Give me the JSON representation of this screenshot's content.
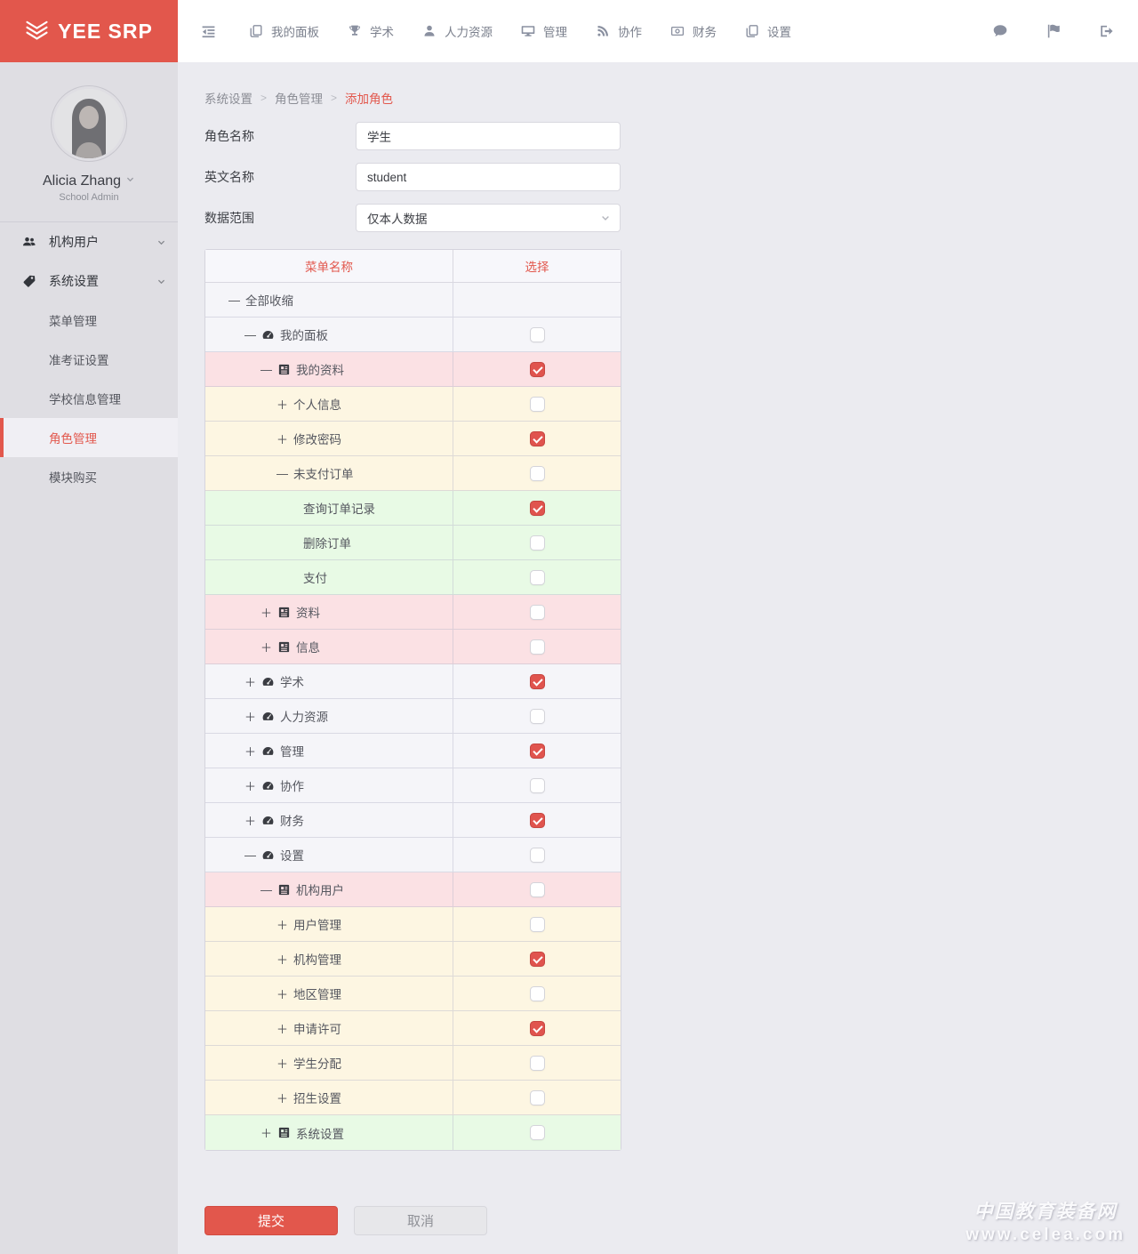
{
  "app": {
    "logo_text": "YEE SRP"
  },
  "topnav": {
    "items": [
      {
        "name": "dashboard",
        "icon": "copy",
        "label": "我的面板"
      },
      {
        "name": "academics",
        "icon": "trophy",
        "label": "学术"
      },
      {
        "name": "hr",
        "icon": "user",
        "label": "人力资源"
      },
      {
        "name": "management",
        "icon": "monitor",
        "label": "管理"
      },
      {
        "name": "collaboration",
        "icon": "rss",
        "label": "协作"
      },
      {
        "name": "finance",
        "icon": "cash",
        "label": "财务"
      },
      {
        "name": "settings",
        "icon": "copy",
        "label": "设置"
      }
    ]
  },
  "user": {
    "name": "Alicia Zhang",
    "role": "School Admin"
  },
  "sidebar": {
    "items": [
      {
        "name": "org-users",
        "icon": "users",
        "label": "机构用户",
        "expanded": false
      },
      {
        "name": "system-settings",
        "icon": "tag",
        "label": "系统设置",
        "expanded": true,
        "children": [
          {
            "name": "menu-management",
            "label": "菜单管理",
            "active": false
          },
          {
            "name": "admission-ticket-settings",
            "label": "准考证设置",
            "active": false
          },
          {
            "name": "school-info-management",
            "label": "学校信息管理",
            "active": false
          },
          {
            "name": "role-management",
            "label": "角色管理",
            "active": true
          },
          {
            "name": "module-purchase",
            "label": "模块购买",
            "active": false
          }
        ]
      }
    ]
  },
  "breadcrumb": {
    "sep": ">",
    "items": [
      "系统设置",
      "角色管理",
      "添加角色"
    ]
  },
  "form": {
    "role_name": {
      "label": "角色名称",
      "value": "学生"
    },
    "english_name": {
      "label": "英文名称",
      "value": "student"
    },
    "data_scope": {
      "label": "数据范围",
      "value": "仅本人数据"
    }
  },
  "table": {
    "headers": [
      "菜单名称",
      "选择"
    ],
    "rows": [
      {
        "label": "全部收缩",
        "level": 0,
        "prefix": "—",
        "icon": null,
        "checkbox": false,
        "checked": false,
        "bg": "lavender"
      },
      {
        "label": "我的面板",
        "level": 1,
        "prefix": "—",
        "icon": "dashboard",
        "checkbox": true,
        "checked": false,
        "bg": "lavender"
      },
      {
        "label": "我的资料",
        "level": 2,
        "prefix": "—",
        "icon": "news",
        "checkbox": true,
        "checked": true,
        "bg": "pink"
      },
      {
        "label": "个人信息",
        "level": 3,
        "prefix": "＋",
        "icon": null,
        "checkbox": true,
        "checked": false,
        "bg": "yellow"
      },
      {
        "label": "修改密码",
        "level": 3,
        "prefix": "＋",
        "icon": null,
        "checkbox": true,
        "checked": true,
        "bg": "yellow"
      },
      {
        "label": "未支付订单",
        "level": 3,
        "prefix": "—",
        "icon": null,
        "checkbox": true,
        "checked": false,
        "bg": "yellow"
      },
      {
        "label": "查询订单记录",
        "level": 4,
        "prefix": null,
        "icon": null,
        "checkbox": true,
        "checked": true,
        "bg": "green"
      },
      {
        "label": "删除订单",
        "level": 4,
        "prefix": null,
        "icon": null,
        "checkbox": true,
        "checked": false,
        "bg": "green"
      },
      {
        "label": "支付",
        "level": 4,
        "prefix": null,
        "icon": null,
        "checkbox": true,
        "checked": false,
        "bg": "green"
      },
      {
        "label": "资料",
        "level": 2,
        "prefix": "＋",
        "icon": "news",
        "checkbox": true,
        "checked": false,
        "bg": "pink"
      },
      {
        "label": "信息",
        "level": 2,
        "prefix": "＋",
        "icon": "news",
        "checkbox": true,
        "checked": false,
        "bg": "pink"
      },
      {
        "label": "学术",
        "level": 1,
        "prefix": "＋",
        "icon": "dashboard",
        "checkbox": true,
        "checked": true,
        "bg": "lavender"
      },
      {
        "label": "人力资源",
        "level": 1,
        "prefix": "＋",
        "icon": "dashboard",
        "checkbox": true,
        "checked": false,
        "bg": "lavender"
      },
      {
        "label": "管理",
        "level": 1,
        "prefix": "＋",
        "icon": "dashboard",
        "checkbox": true,
        "checked": true,
        "bg": "lavender"
      },
      {
        "label": "协作",
        "level": 1,
        "prefix": "＋",
        "icon": "dashboard",
        "checkbox": true,
        "checked": false,
        "bg": "lavender"
      },
      {
        "label": "财务",
        "level": 1,
        "prefix": "＋",
        "icon": "dashboard",
        "checkbox": true,
        "checked": true,
        "bg": "lavender"
      },
      {
        "label": "设置",
        "level": 1,
        "prefix": "—",
        "icon": "dashboard",
        "checkbox": true,
        "checked": false,
        "bg": "lavender"
      },
      {
        "label": "机构用户",
        "level": 2,
        "prefix": "—",
        "icon": "news",
        "checkbox": true,
        "checked": false,
        "bg": "pink"
      },
      {
        "label": "用户管理",
        "level": 3,
        "prefix": "＋",
        "icon": null,
        "checkbox": true,
        "checked": false,
        "bg": "yellow"
      },
      {
        "label": "机构管理",
        "level": 3,
        "prefix": "＋",
        "icon": null,
        "checkbox": true,
        "checked": true,
        "bg": "yellow"
      },
      {
        "label": "地区管理",
        "level": 3,
        "prefix": "＋",
        "icon": null,
        "checkbox": true,
        "checked": false,
        "bg": "yellow"
      },
      {
        "label": "申请许可",
        "level": 3,
        "prefix": "＋",
        "icon": null,
        "checkbox": true,
        "checked": true,
        "bg": "yellow"
      },
      {
        "label": "学生分配",
        "level": 3,
        "prefix": "＋",
        "icon": null,
        "checkbox": true,
        "checked": false,
        "bg": "yellow"
      },
      {
        "label": "招生设置",
        "level": 3,
        "prefix": "＋",
        "icon": null,
        "checkbox": true,
        "checked": false,
        "bg": "yellow"
      },
      {
        "label": "系统设置",
        "level": 2,
        "prefix": "＋",
        "icon": "news",
        "checkbox": true,
        "checked": false,
        "bg": "green"
      }
    ]
  },
  "buttons": {
    "submit": "提交",
    "cancel": "取消"
  },
  "watermark": {
    "line1": "中国教育装备网",
    "line2": "www.celea.com"
  },
  "colors": {
    "accent_red": "#e2574c",
    "checkbox_checked": "#e0544e",
    "sidebar_bg": "#dfdee3",
    "main_bg": "#ebebf0",
    "row_lavender": "#f5f5f9",
    "row_pink": "#fbe1e4",
    "row_yellow": "#fdf6e2",
    "row_green": "#e8fae5"
  }
}
